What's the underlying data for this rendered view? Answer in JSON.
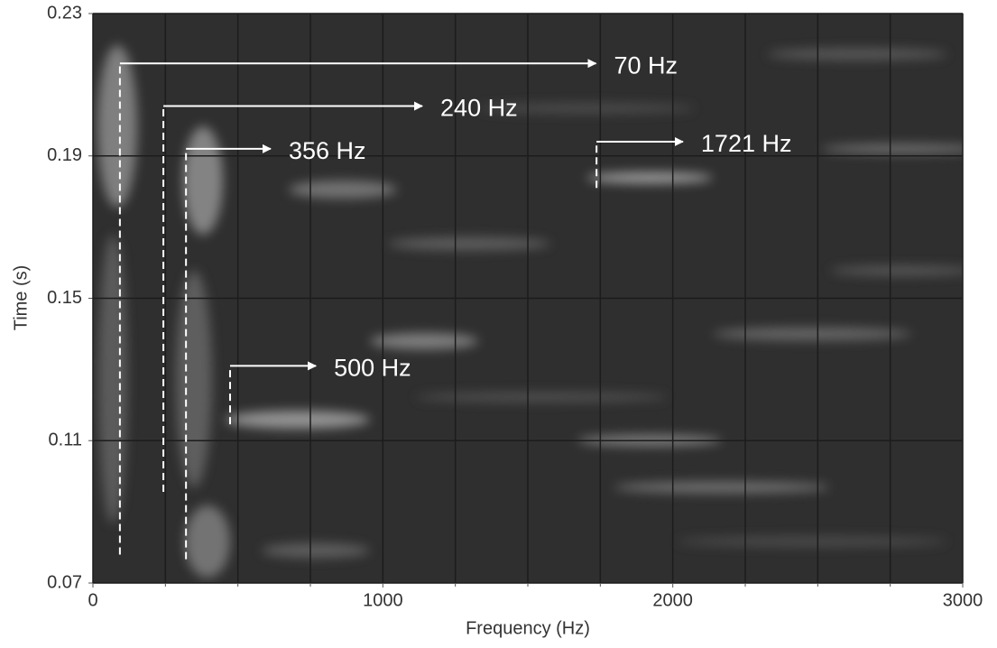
{
  "chart_data": {
    "type": "spectrogram",
    "x_label": "Frequency (Hz)",
    "y_label": "Time (s)",
    "xlim": [
      0,
      3000
    ],
    "ylim": [
      0.07,
      0.23
    ],
    "xticks": [
      0,
      1000,
      2000,
      3000
    ],
    "x_minor_ticks": [
      250,
      500,
      750,
      1250,
      1500,
      1750,
      2250,
      2500,
      2750
    ],
    "yticks": [
      0.07,
      0.11,
      0.15,
      0.19,
      0.23
    ],
    "grid": true,
    "annotations": [
      {
        "text": "70 Hz",
        "x": 93,
        "y_start": 0.078,
        "y_end": 0.216,
        "x_end": 1735
      },
      {
        "text": "240 Hz",
        "x": 243,
        "y_start": 0.0956,
        "y_end": 0.204,
        "x_end": 1136
      },
      {
        "text": "356 Hz",
        "x": 321,
        "y_start": 0.0767,
        "y_end": 0.192,
        "x_end": 613
      },
      {
        "text": "500 Hz",
        "x": 473,
        "y_start": 0.1146,
        "y_end": 0.131,
        "x_end": 769
      },
      {
        "text": "1721 Hz",
        "x": 1737,
        "y_start": 0.181,
        "y_end": 0.194,
        "x_end": 2035
      }
    ]
  }
}
